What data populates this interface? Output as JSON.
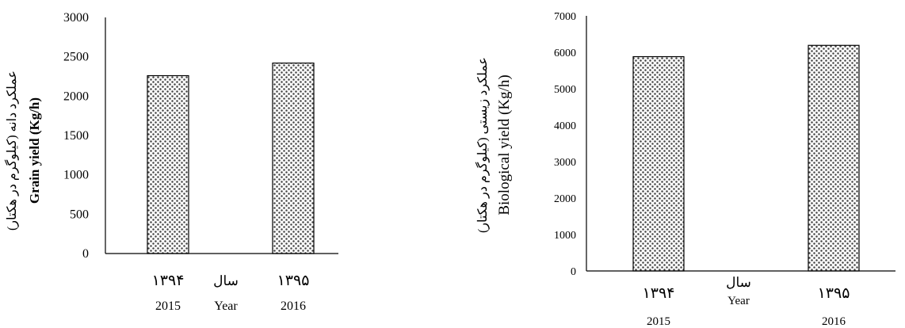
{
  "chart_data": [
    {
      "type": "bar",
      "categories": [
        "2015",
        "2016"
      ],
      "category_labels_fa": [
        "۱۳۹۴",
        "۱۳۹۵"
      ],
      "values": [
        2260,
        2420
      ],
      "ylabel_fa": "عملکرد دانه (کیلوگرم در هکتار)",
      "ylabel_en": "Grain yield  (Kg/h)",
      "xlabel_fa": "سال",
      "xlabel_en": "Year",
      "ylim": [
        0,
        3000
      ],
      "yticks": [
        0,
        500,
        1000,
        1500,
        2000,
        2500,
        3000
      ],
      "grid": false,
      "pattern": "dotted"
    },
    {
      "type": "bar",
      "categories": [
        "2015",
        "2016"
      ],
      "category_labels_fa": [
        "۱۳۹۴",
        "۱۳۹۵"
      ],
      "values": [
        5880,
        6190
      ],
      "ylabel_fa": "عملکرد زیستی (کیلوگرم در هکتار)",
      "ylabel_en": "Biological yield (Kg/h)",
      "xlabel_fa": "سال",
      "xlabel_en": "Year",
      "ylim": [
        0,
        7000
      ],
      "yticks": [
        0,
        1000,
        2000,
        3000,
        4000,
        5000,
        6000,
        7000
      ],
      "grid": false,
      "pattern": "dotted"
    }
  ]
}
